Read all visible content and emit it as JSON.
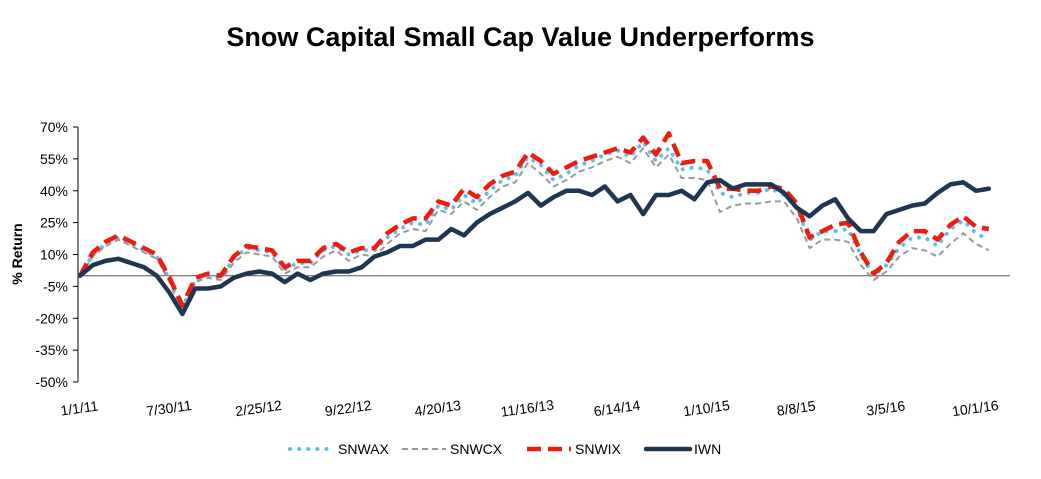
{
  "chart_data": {
    "type": "line",
    "title": "Snow Capital Small Cap Value Underperforms",
    "ylabel": "% Return",
    "xlabel": "",
    "ylim": [
      -50,
      70
    ],
    "y_ticks": [
      "70%",
      "55%",
      "40%",
      "25%",
      "10%",
      "-5%",
      "-20%",
      "-35%",
      "-50%"
    ],
    "y_tick_values": [
      70,
      55,
      40,
      25,
      10,
      -5,
      -20,
      -35,
      -50
    ],
    "x_ticks": [
      "1/1/11",
      "7/30/11",
      "2/25/12",
      "9/22/12",
      "4/20/13",
      "11/16/13",
      "6/14/14",
      "1/10/15",
      "8/8/15",
      "3/5/16",
      "10/1/16"
    ],
    "x_tick_months": [
      0,
      7,
      14,
      21,
      28,
      35,
      42,
      49,
      56,
      63,
      70
    ],
    "x_range_months": [
      0,
      74
    ],
    "baseline": 0,
    "legend_position": "bottom",
    "series": [
      {
        "name": "SNWAX",
        "color": "#5bc0eb",
        "style": "dotted",
        "values": [
          0,
          10,
          15,
          18,
          15,
          12,
          9,
          -2,
          -15,
          -2,
          0,
          -1,
          8,
          13,
          12,
          11,
          3,
          6,
          6,
          12,
          14,
          10,
          12,
          12,
          18,
          22,
          25,
          24,
          33,
          31,
          38,
          34,
          40,
          45,
          47,
          56,
          52,
          45,
          48,
          52,
          54,
          57,
          59,
          56,
          63,
          54,
          60,
          50,
          51,
          50,
          39,
          37,
          39,
          39,
          41,
          38,
          32,
          17,
          21,
          21,
          22,
          10,
          0,
          5,
          13,
          18,
          18,
          14,
          22,
          26,
          20,
          17
        ]
      },
      {
        "name": "SNWCX",
        "color": "#999999",
        "style": "dashed",
        "values": [
          0,
          9,
          14,
          17,
          14,
          11,
          8,
          -3,
          -17,
          -3,
          -1,
          -2,
          6,
          11,
          10,
          9,
          1,
          4,
          4,
          9,
          12,
          7,
          10,
          9,
          15,
          20,
          22,
          21,
          31,
          29,
          35,
          31,
          37,
          42,
          44,
          53,
          48,
          42,
          45,
          49,
          51,
          54,
          56,
          53,
          60,
          51,
          57,
          46,
          46,
          45,
          30,
          33,
          34,
          34,
          35,
          35,
          27,
          13,
          17,
          17,
          16,
          5,
          -2,
          2,
          9,
          13,
          12,
          9,
          15,
          20,
          15,
          12
        ]
      },
      {
        "name": "SNWIX",
        "color": "#ee1c0e",
        "style": "dashed-thick",
        "values": [
          0,
          11,
          16,
          19,
          16,
          13,
          10,
          -1,
          -14,
          -1,
          1,
          0,
          9,
          14,
          13,
          12,
          4,
          7,
          7,
          13,
          15,
          11,
          13,
          13,
          20,
          24,
          27,
          27,
          35,
          33,
          41,
          37,
          43,
          47,
          49,
          58,
          54,
          48,
          51,
          54,
          56,
          58,
          60,
          58,
          65,
          57,
          67,
          53,
          54,
          54,
          41,
          41,
          40,
          40,
          42,
          41,
          34,
          18,
          21,
          24,
          25,
          11,
          1,
          6,
          16,
          21,
          21,
          17,
          24,
          28,
          23,
          22
        ]
      },
      {
        "name": "IWN",
        "color": "#1f3550",
        "style": "solid",
        "values": [
          0,
          5,
          7,
          8,
          6,
          4,
          0,
          -8,
          -18,
          -6,
          -6,
          -5,
          -1,
          1,
          2,
          1,
          -3,
          1,
          -2,
          1,
          2,
          2,
          4,
          9,
          11,
          14,
          14,
          17,
          17,
          22,
          19,
          25,
          29,
          32,
          35,
          39,
          33,
          37,
          40,
          40,
          38,
          42,
          35,
          38,
          29,
          38,
          38,
          40,
          36,
          44,
          45,
          41,
          43,
          43,
          43,
          39,
          32,
          28,
          33,
          36,
          27,
          21,
          21,
          29,
          31,
          33,
          34,
          39,
          43,
          44,
          40,
          41
        ]
      }
    ]
  }
}
